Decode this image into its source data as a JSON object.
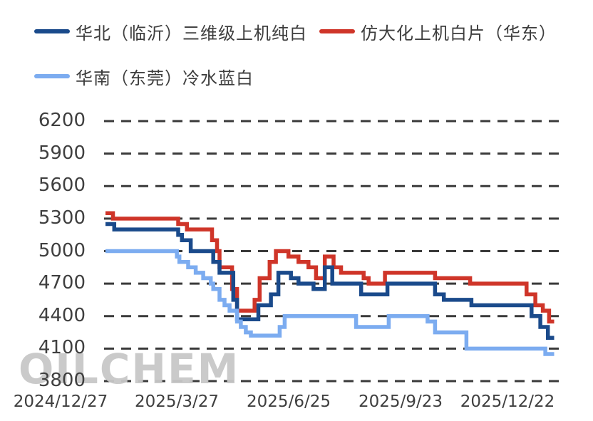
{
  "watermark": "OILCHEM",
  "legend": {
    "items": [
      {
        "label": "华北（临沂）三维级上机纯白",
        "color": "#1a4a8b"
      },
      {
        "label": "仿大化上机白片（华东）",
        "color": "#cf3529"
      },
      {
        "label": "华南（东莞）冷水蓝白",
        "color": "#7cacf0"
      }
    ]
  },
  "chart_data": {
    "type": "line",
    "line_style": "step-after",
    "title": "",
    "xlabel": "",
    "ylabel": "",
    "grid": {
      "dashed": true,
      "color": "#3a3a3a"
    },
    "legend_position": "top",
    "x_axis": {
      "unit": "date",
      "tick_labels": [
        "2024/12/27",
        "2025/3/27",
        "2025/6/25",
        "2025/9/23",
        "2025/12/22"
      ],
      "domain_days": [
        0,
        364
      ]
    },
    "y_axis": {
      "min": 3800,
      "max": 6200,
      "tick_step": 300,
      "ticks": [
        6200,
        5900,
        5600,
        5300,
        5000,
        4700,
        4400,
        4100,
        3800
      ]
    },
    "draw_order": [
      1,
      0,
      2
    ],
    "series": [
      {
        "name": "华北（临沂）三维级上机纯白",
        "color": "#1a4a8b",
        "points": [
          [
            0,
            5250
          ],
          [
            7,
            5200
          ],
          [
            58,
            5150
          ],
          [
            61,
            5100
          ],
          [
            68,
            5000
          ],
          [
            86,
            4900
          ],
          [
            91,
            4800
          ],
          [
            102,
            4550
          ],
          [
            105,
            4370
          ],
          [
            122,
            4500
          ],
          [
            132,
            4600
          ],
          [
            138,
            4800
          ],
          [
            148,
            4750
          ],
          [
            154,
            4700
          ],
          [
            166,
            4650
          ],
          [
            175,
            4850
          ],
          [
            181,
            4700
          ],
          [
            204,
            4600
          ],
          [
            225,
            4700
          ],
          [
            263,
            4600
          ],
          [
            270,
            4550
          ],
          [
            292,
            4500
          ],
          [
            340,
            4400
          ],
          [
            347,
            4300
          ],
          [
            353,
            4200
          ],
          [
            358,
            4200
          ]
        ]
      },
      {
        "name": "仿大化上机白片（华东）",
        "color": "#cf3529",
        "points": [
          [
            0,
            5350
          ],
          [
            6,
            5300
          ],
          [
            58,
            5250
          ],
          [
            65,
            5200
          ],
          [
            85,
            5100
          ],
          [
            89,
            5000
          ],
          [
            91,
            4850
          ],
          [
            101,
            4650
          ],
          [
            105,
            4450
          ],
          [
            119,
            4550
          ],
          [
            123,
            4750
          ],
          [
            131,
            4900
          ],
          [
            136,
            5000
          ],
          [
            146,
            4950
          ],
          [
            154,
            4900
          ],
          [
            162,
            4850
          ],
          [
            168,
            4750
          ],
          [
            175,
            4950
          ],
          [
            182,
            4850
          ],
          [
            188,
            4800
          ],
          [
            206,
            4750
          ],
          [
            210,
            4700
          ],
          [
            223,
            4800
          ],
          [
            263,
            4750
          ],
          [
            291,
            4700
          ],
          [
            336,
            4600
          ],
          [
            343,
            4500
          ],
          [
            349,
            4450
          ],
          [
            354,
            4350
          ],
          [
            358,
            4350
          ]
        ]
      },
      {
        "name": "华南（东莞）冷水蓝白",
        "color": "#7cacf0",
        "points": [
          [
            0,
            5000
          ],
          [
            57,
            4950
          ],
          [
            59,
            4900
          ],
          [
            66,
            4850
          ],
          [
            72,
            4800
          ],
          [
            78,
            4750
          ],
          [
            84,
            4700
          ],
          [
            86,
            4650
          ],
          [
            91,
            4550
          ],
          [
            95,
            4500
          ],
          [
            99,
            4450
          ],
          [
            105,
            4350
          ],
          [
            108,
            4300
          ],
          [
            112,
            4250
          ],
          [
            116,
            4220
          ],
          [
            139,
            4300
          ],
          [
            143,
            4400
          ],
          [
            200,
            4300
          ],
          [
            226,
            4400
          ],
          [
            257,
            4350
          ],
          [
            263,
            4250
          ],
          [
            288,
            4100
          ],
          [
            351,
            4050
          ],
          [
            358,
            4050
          ]
        ]
      }
    ]
  }
}
